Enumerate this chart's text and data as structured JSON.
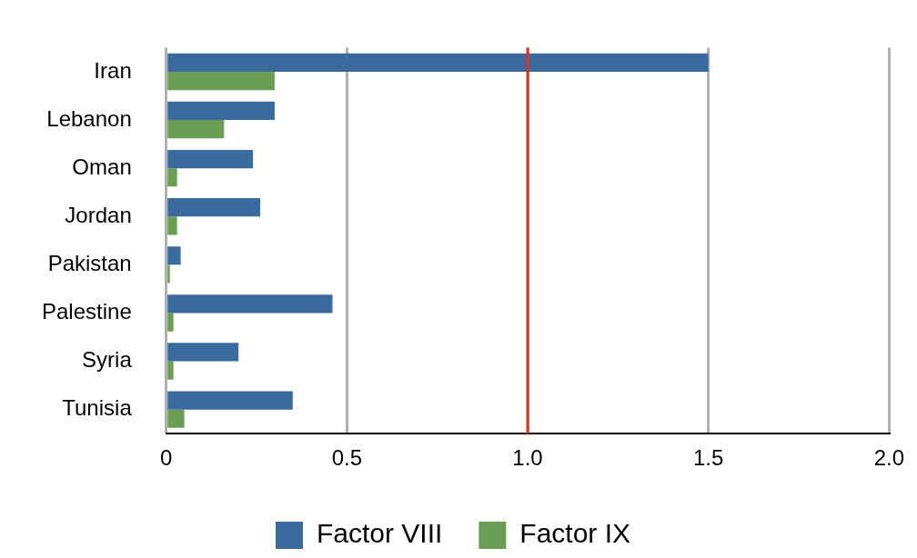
{
  "chart_data": {
    "type": "bar",
    "orientation": "horizontal",
    "categories": [
      "Iran",
      "Lebanon",
      "Oman",
      "Jordan",
      "Pakistan",
      "Palestine",
      "Syria",
      "Tunisia"
    ],
    "series": [
      {
        "name": "Factor VIII",
        "color": "#3b6a9e",
        "values": [
          1.5,
          0.3,
          0.24,
          0.26,
          0.04,
          0.46,
          0.2,
          0.35
        ]
      },
      {
        "name": "Factor IX",
        "color": "#6b9e55",
        "values": [
          0.3,
          0.16,
          0.03,
          0.03,
          0.01,
          0.02,
          0.02,
          0.05
        ]
      }
    ],
    "xlim": [
      0,
      2
    ],
    "xticks": [
      0,
      0.5,
      {
        "value": 1,
        "label": "1.0"
      },
      1.5,
      {
        "value": 2,
        "label": "2.0"
      }
    ],
    "grid": "x",
    "legend": "bottom",
    "ref_lines": [
      {
        "axis": "x",
        "value": 1,
        "color": "#e0331f"
      }
    ]
  }
}
